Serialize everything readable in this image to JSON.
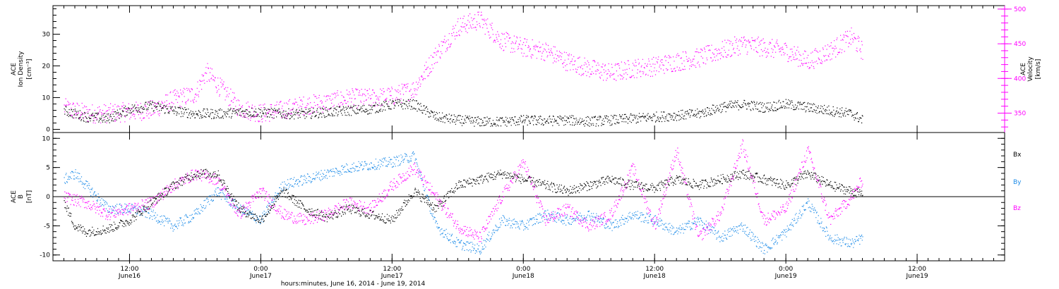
{
  "chart_data": [
    {
      "panel": "plasma",
      "type": "scatter",
      "ylabel_left": [
        "ACE",
        "Ion Density",
        "[cm⁻³]"
      ],
      "ylabel_right": [
        "ACE",
        "Velocity",
        "[km/s]"
      ],
      "ylim_left": [
        -1,
        39
      ],
      "ylim_right": [
        322,
        505
      ],
      "yticks_left": [
        0,
        10,
        20,
        30
      ],
      "yticks_right": [
        350,
        400,
        450,
        500
      ],
      "colors": {
        "density": "#000000",
        "velocity": "#ff00ff"
      },
      "series": [
        {
          "axis": "left",
          "color": "#000000",
          "points": [
            [
              6,
              6
            ],
            [
              8,
              4
            ],
            [
              10,
              3.5
            ],
            [
              12,
              6.5
            ],
            [
              14,
              7.5
            ],
            [
              16,
              6
            ],
            [
              18,
              5
            ],
            [
              20,
              5
            ],
            [
              22,
              5.5
            ],
            [
              24,
              5.5
            ],
            [
              26,
              5
            ],
            [
              28,
              5
            ],
            [
              30,
              5.5
            ],
            [
              32,
              6
            ],
            [
              34,
              6.5
            ],
            [
              36,
              8
            ],
            [
              38,
              8
            ],
            [
              40,
              4
            ],
            [
              42,
              3
            ],
            [
              44,
              2.5
            ],
            [
              46,
              2.5
            ],
            [
              48,
              3
            ],
            [
              50,
              2.8
            ],
            [
              52,
              3
            ],
            [
              54,
              2.6
            ],
            [
              56,
              3
            ],
            [
              58,
              3.5
            ],
            [
              60,
              4
            ],
            [
              62,
              4.5
            ],
            [
              64,
              5
            ],
            [
              66,
              7
            ],
            [
              68,
              8
            ],
            [
              70,
              7
            ],
            [
              72,
              8
            ],
            [
              74,
              7
            ],
            [
              76,
              6
            ],
            [
              78,
              5
            ],
            [
              79,
              3
            ]
          ]
        },
        {
          "axis": "right",
          "color": "#ff00ff",
          "points": [
            [
              6,
              358
            ],
            [
              8,
              350
            ],
            [
              10,
              350
            ],
            [
              14,
              355
            ],
            [
              16,
              370
            ],
            [
              18,
              378
            ],
            [
              19,
              410
            ],
            [
              20,
              392
            ],
            [
              22,
              358
            ],
            [
              24,
              350
            ],
            [
              26,
              355
            ],
            [
              28,
              362
            ],
            [
              30,
              366
            ],
            [
              32,
              372
            ],
            [
              34,
              372
            ],
            [
              36,
              375
            ],
            [
              38,
              385
            ],
            [
              40,
              435
            ],
            [
              42,
              475
            ],
            [
              44,
              485
            ],
            [
              46,
              455
            ],
            [
              48,
              445
            ],
            [
              50,
              440
            ],
            [
              52,
              425
            ],
            [
              54,
              415
            ],
            [
              56,
              408
            ],
            [
              58,
              415
            ],
            [
              60,
              418
            ],
            [
              62,
              425
            ],
            [
              64,
              430
            ],
            [
              66,
              440
            ],
            [
              68,
              450
            ],
            [
              70,
              445
            ],
            [
              72,
              440
            ],
            [
              74,
              425
            ],
            [
              76,
              440
            ],
            [
              78,
              460
            ],
            [
              79,
              440
            ]
          ]
        }
      ]
    },
    {
      "panel": "field",
      "type": "scatter",
      "ylabel_left": [
        "ACE",
        "B",
        "[nT]"
      ],
      "ylim": [
        -11,
        11
      ],
      "yticks": [
        -10,
        -5,
        0,
        5,
        10
      ],
      "legend": [
        {
          "label": "Bx",
          "color": "#000000"
        },
        {
          "label": "By",
          "color": "#1e8ce8"
        },
        {
          "label": "Bz",
          "color": "#ff00ff"
        }
      ],
      "legend_position": "right",
      "series": [
        {
          "name": "Bx",
          "color": "#000000",
          "points": [
            [
              6,
              -1
            ],
            [
              7,
              -5
            ],
            [
              8,
              -6
            ],
            [
              10,
              -5.5
            ],
            [
              12,
              -4
            ],
            [
              14,
              -1
            ],
            [
              16,
              2
            ],
            [
              18,
              4
            ],
            [
              20,
              4
            ],
            [
              22,
              -2
            ],
            [
              24,
              -4
            ],
            [
              26,
              1
            ],
            [
              28,
              -2
            ],
            [
              30,
              -3.5
            ],
            [
              32,
              -2
            ],
            [
              34,
              -3
            ],
            [
              36,
              -4
            ],
            [
              38,
              1
            ],
            [
              40,
              -2
            ],
            [
              42,
              2
            ],
            [
              44,
              3
            ],
            [
              46,
              4
            ],
            [
              48,
              3
            ],
            [
              50,
              2
            ],
            [
              52,
              1
            ],
            [
              54,
              2
            ],
            [
              56,
              3
            ],
            [
              58,
              2
            ],
            [
              60,
              1.5
            ],
            [
              62,
              3
            ],
            [
              64,
              2
            ],
            [
              66,
              3
            ],
            [
              68,
              4
            ],
            [
              70,
              3
            ],
            [
              72,
              2
            ],
            [
              74,
              4
            ],
            [
              76,
              2
            ],
            [
              78,
              1
            ],
            [
              79,
              0.5
            ]
          ]
        },
        {
          "name": "By",
          "color": "#1e8ce8",
          "points": [
            [
              6,
              3
            ],
            [
              7,
              4
            ],
            [
              8,
              2
            ],
            [
              10,
              -2
            ],
            [
              12,
              -2
            ],
            [
              14,
              -3
            ],
            [
              16,
              -5
            ],
            [
              18,
              -3
            ],
            [
              20,
              1
            ],
            [
              22,
              -2
            ],
            [
              24,
              -4
            ],
            [
              26,
              2
            ],
            [
              28,
              3
            ],
            [
              30,
              4
            ],
            [
              32,
              5
            ],
            [
              34,
              5.5
            ],
            [
              36,
              6
            ],
            [
              38,
              7
            ],
            [
              40,
              -5
            ],
            [
              42,
              -8
            ],
            [
              44,
              -9
            ],
            [
              46,
              -4
            ],
            [
              48,
              -5
            ],
            [
              50,
              -3
            ],
            [
              52,
              -4
            ],
            [
              54,
              -3
            ],
            [
              56,
              -5
            ],
            [
              58,
              -3
            ],
            [
              60,
              -4
            ],
            [
              62,
              -6
            ],
            [
              64,
              -4
            ],
            [
              66,
              -7
            ],
            [
              68,
              -5
            ],
            [
              70,
              -9
            ],
            [
              72,
              -6
            ],
            [
              74,
              -1
            ],
            [
              76,
              -7
            ],
            [
              78,
              -8
            ],
            [
              79,
              -7
            ]
          ]
        },
        {
          "name": "Bz",
          "color": "#ff00ff",
          "points": [
            [
              6,
              0
            ],
            [
              8,
              -1
            ],
            [
              10,
              -3
            ],
            [
              12,
              -2
            ],
            [
              14,
              -1
            ],
            [
              16,
              2
            ],
            [
              18,
              4
            ],
            [
              20,
              3
            ],
            [
              22,
              -3
            ],
            [
              24,
              1
            ],
            [
              26,
              -3
            ],
            [
              28,
              -4
            ],
            [
              30,
              -3
            ],
            [
              32,
              -1
            ],
            [
              34,
              -2
            ],
            [
              36,
              2
            ],
            [
              38,
              5
            ],
            [
              40,
              0
            ],
            [
              42,
              -5
            ],
            [
              44,
              -7
            ],
            [
              46,
              0
            ],
            [
              48,
              6
            ],
            [
              50,
              -4
            ],
            [
              52,
              -2
            ],
            [
              54,
              -5
            ],
            [
              56,
              -3
            ],
            [
              58,
              5
            ],
            [
              60,
              -5
            ],
            [
              62,
              8
            ],
            [
              64,
              -7
            ],
            [
              66,
              -3
            ],
            [
              68,
              9
            ],
            [
              70,
              -4
            ],
            [
              72,
              -2
            ],
            [
              74,
              8
            ],
            [
              76,
              -4
            ],
            [
              78,
              0
            ],
            [
              79,
              3
            ]
          ]
        }
      ]
    }
  ],
  "x_axis": {
    "range_hours": [
      5,
      92
    ],
    "ticks": [
      {
        "hour": 12,
        "time": "12:00",
        "date": "June16"
      },
      {
        "hour": 24,
        "time": "0:00",
        "date": "June17"
      },
      {
        "hour": 36,
        "time": "12:00",
        "date": "June17"
      },
      {
        "hour": 48,
        "time": "0:00",
        "date": "June18"
      },
      {
        "hour": 60,
        "time": "12:00",
        "date": "June18"
      },
      {
        "hour": 72,
        "time": "0:00",
        "date": "June19"
      },
      {
        "hour": 84,
        "time": "12:00",
        "date": "June19"
      }
    ],
    "xlabel": "hours:minutes, June 16, 2014 - June 19, 2014"
  }
}
